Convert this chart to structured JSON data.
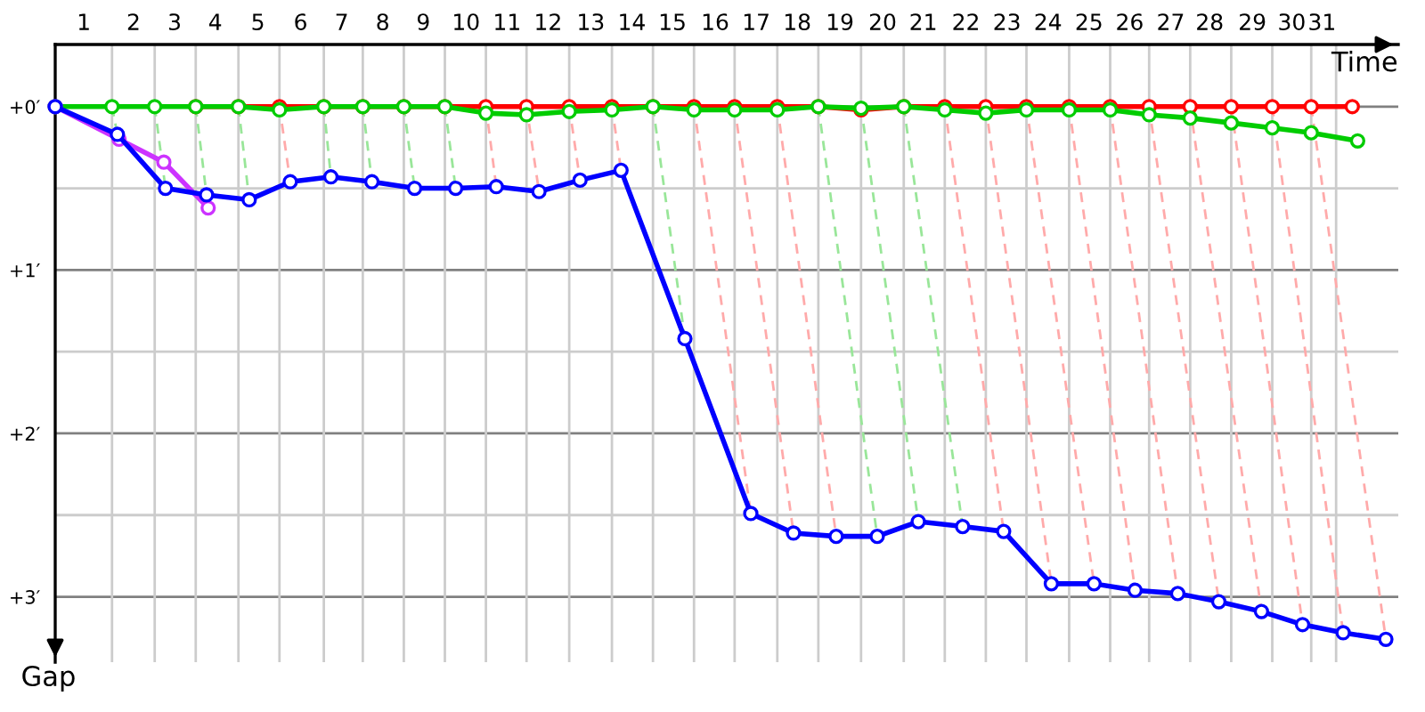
{
  "chart_data": {
    "type": "line",
    "xlabel": "Time",
    "ylabel": "Gap",
    "xlim": [
      0,
      32.4
    ],
    "ylim": [
      3.4,
      -0.38
    ],
    "xticks": [
      {
        "value": 0.69,
        "label": "1"
      },
      {
        "value": 1.89,
        "label": "2"
      },
      {
        "value": 2.88,
        "label": "3"
      },
      {
        "value": 3.86,
        "label": "4"
      },
      {
        "value": 4.89,
        "label": "5"
      },
      {
        "value": 5.92,
        "label": "6"
      },
      {
        "value": 6.91,
        "label": "7"
      },
      {
        "value": 7.9,
        "label": "8"
      },
      {
        "value": 8.88,
        "label": "9"
      },
      {
        "value": 9.91,
        "label": "10"
      },
      {
        "value": 10.9,
        "label": "11"
      },
      {
        "value": 11.89,
        "label": "12"
      },
      {
        "value": 12.92,
        "label": "13"
      },
      {
        "value": 13.91,
        "label": "14"
      },
      {
        "value": 14.89,
        "label": "15"
      },
      {
        "value": 15.92,
        "label": "16"
      },
      {
        "value": 16.91,
        "label": "17"
      },
      {
        "value": 17.9,
        "label": "18"
      },
      {
        "value": 18.93,
        "label": "19"
      },
      {
        "value": 19.96,
        "label": "20"
      },
      {
        "value": 20.94,
        "label": "21"
      },
      {
        "value": 21.97,
        "label": "22"
      },
      {
        "value": 22.96,
        "label": "23"
      },
      {
        "value": 23.95,
        "label": "24"
      },
      {
        "value": 24.94,
        "label": "25"
      },
      {
        "value": 25.92,
        "label": "26"
      },
      {
        "value": 26.91,
        "label": "27"
      },
      {
        "value": 27.85,
        "label": "28"
      },
      {
        "value": 28.88,
        "label": "29"
      },
      {
        "value": 29.83,
        "label": "30"
      },
      {
        "value": 30.56,
        "label": "31"
      }
    ],
    "yticks": [
      {
        "value": 0,
        "label": "+0′"
      },
      {
        "value": 0.5,
        "label": null
      },
      {
        "value": 1,
        "label": "+1′"
      },
      {
        "value": 1.5,
        "label": null
      },
      {
        "value": 2,
        "label": "+2′"
      },
      {
        "value": 2.5,
        "label": null
      },
      {
        "value": 3,
        "label": "+3′"
      }
    ],
    "grid": "y",
    "marker": "circle",
    "ref_lines": [
      {
        "axis": "x",
        "value": 1.37,
        "color": "#cccccc"
      },
      {
        "axis": "x",
        "value": 2.4,
        "color": "#cccccc"
      },
      {
        "axis": "x",
        "value": 3.39,
        "color": "#cccccc"
      },
      {
        "axis": "x",
        "value": 4.42,
        "color": "#cccccc"
      },
      {
        "axis": "x",
        "value": 5.41,
        "color": "#cccccc"
      },
      {
        "axis": "x",
        "value": 6.48,
        "color": "#cccccc"
      },
      {
        "axis": "x",
        "value": 7.42,
        "color": "#cccccc"
      },
      {
        "axis": "x",
        "value": 8.41,
        "color": "#cccccc"
      },
      {
        "axis": "x",
        "value": 9.4,
        "color": "#cccccc"
      },
      {
        "axis": "x",
        "value": 10.39,
        "color": "#cccccc"
      },
      {
        "axis": "x",
        "value": 11.37,
        "color": "#cccccc"
      },
      {
        "axis": "x",
        "value": 12.4,
        "color": "#cccccc"
      },
      {
        "axis": "x",
        "value": 13.43,
        "color": "#cccccc"
      },
      {
        "axis": "x",
        "value": 14.42,
        "color": "#cccccc"
      },
      {
        "axis": "x",
        "value": 15.41,
        "color": "#cccccc"
      },
      {
        "axis": "x",
        "value": 16.39,
        "color": "#cccccc"
      },
      {
        "axis": "x",
        "value": 17.42,
        "color": "#cccccc"
      },
      {
        "axis": "x",
        "value": 18.41,
        "color": "#cccccc"
      },
      {
        "axis": "x",
        "value": 19.44,
        "color": "#cccccc"
      },
      {
        "axis": "x",
        "value": 20.47,
        "color": "#cccccc"
      },
      {
        "axis": "x",
        "value": 21.46,
        "color": "#cccccc"
      },
      {
        "axis": "x",
        "value": 22.45,
        "color": "#cccccc"
      },
      {
        "axis": "x",
        "value": 23.43,
        "color": "#cccccc"
      },
      {
        "axis": "x",
        "value": 24.46,
        "color": "#cccccc"
      },
      {
        "axis": "x",
        "value": 25.45,
        "color": "#cccccc"
      },
      {
        "axis": "x",
        "value": 26.39,
        "color": "#cccccc"
      },
      {
        "axis": "x",
        "value": 27.38,
        "color": "#cccccc"
      },
      {
        "axis": "x",
        "value": 28.37,
        "color": "#cccccc"
      },
      {
        "axis": "x",
        "value": 29.36,
        "color": "#cccccc"
      },
      {
        "axis": "x",
        "value": 30.3,
        "color": "#cccccc"
      },
      {
        "axis": "x",
        "value": 30.9,
        "color": "#cccccc"
      }
    ],
    "series": [
      {
        "color": "#99e699",
        "line_style": "dashed",
        "marker": "none",
        "x": [
          1.37,
          1.5,
          null,
          2.4,
          2.66,
          null,
          3.39,
          3.65,
          null,
          4.42,
          4.68,
          null,
          6.48,
          6.65,
          null,
          7.42,
          7.64,
          null,
          8.41,
          8.67,
          null,
          9.4,
          9.66,
          null,
          14.42,
          15.19,
          null,
          18.41,
          19.83,
          null,
          19.44,
          20.82,
          null,
          20.47,
          21.89
        ],
        "values": [
          0,
          0.17,
          null,
          0,
          0.5,
          null,
          0,
          0.54,
          null,
          0,
          0.57,
          null,
          0,
          0.43,
          null,
          0,
          0.46,
          null,
          0,
          0.5,
          null,
          0,
          0.5,
          null,
          0,
          1.42,
          null,
          0,
          2.63,
          null,
          0,
          2.54,
          null,
          0,
          2.57
        ]
      },
      {
        "color": "#ffaaaa",
        "line_style": "dashed",
        "marker": "none",
        "x": [
          5.41,
          5.67,
          null,
          10.39,
          10.64,
          null,
          11.37,
          11.67,
          null,
          12.4,
          12.66,
          null,
          13.43,
          13.65,
          null,
          15.41,
          16.78,
          null,
          16.39,
          17.81,
          null,
          17.42,
          18.84,
          null,
          21.46,
          22.88,
          null,
          22.45,
          24.03,
          null,
          23.43,
          25.06,
          null,
          24.46,
          26.05,
          null,
          25.45,
          27.08,
          null,
          26.39,
          28.07,
          null,
          27.38,
          29.1,
          null,
          28.37,
          30.09,
          null,
          29.36,
          31.07,
          null,
          30.3,
          32.1
        ],
        "values": [
          0,
          0.46,
          null,
          0,
          0.49,
          null,
          0,
          0.52,
          null,
          0,
          0.45,
          null,
          0,
          0.39,
          null,
          0,
          2.49,
          null,
          0,
          2.61,
          null,
          0,
          2.63,
          null,
          0,
          2.6,
          null,
          0,
          2.92,
          null,
          0,
          2.92,
          null,
          0,
          2.96,
          null,
          0,
          2.98,
          null,
          0,
          3.03,
          null,
          0,
          3.09,
          null,
          0,
          3.17,
          null,
          0,
          3.22,
          null,
          0,
          3.26
        ]
      },
      {
        "color": "#ff0000",
        "x": [
          3.39,
          4.42,
          5.41,
          6.48,
          7.42,
          8.41,
          9.4,
          10.39,
          11.37,
          12.4,
          13.43,
          14.42,
          15.41,
          16.39,
          17.42,
          18.41,
          19.44,
          20.47,
          21.46,
          22.45,
          23.43,
          24.46,
          25.45,
          26.39,
          27.38,
          28.37,
          29.36,
          30.3,
          31.29
        ],
        "values": [
          0,
          0,
          0,
          0,
          0,
          0,
          0,
          0,
          0,
          0,
          0,
          0,
          0,
          0,
          0,
          0,
          0.02,
          0,
          0,
          0,
          0,
          0,
          0,
          0,
          0,
          0,
          0,
          0,
          0
        ]
      },
      {
        "color": "#00cc00",
        "x": [
          0,
          1.37,
          2.4,
          3.39,
          4.42,
          5.41,
          6.48,
          7.42,
          8.41,
          9.4,
          10.39,
          11.37,
          12.4,
          13.43,
          14.42,
          15.41,
          16.39,
          17.42,
          18.41,
          19.44,
          20.47,
          21.46,
          22.45,
          23.43,
          24.46,
          25.45,
          26.39,
          27.38,
          28.37,
          29.36,
          30.3,
          31.42
        ],
        "values": [
          0,
          0,
          0,
          0,
          0,
          0.02,
          0,
          0,
          0,
          0,
          0.04,
          0.05,
          0.03,
          0.02,
          0,
          0.02,
          0.02,
          0.02,
          0,
          0.01,
          0,
          0.02,
          0.04,
          0.02,
          0.02,
          0.02,
          0.05,
          0.07,
          0.1,
          0.13,
          0.16,
          0.21
        ]
      },
      {
        "color": "#cc33ff",
        "x": [
          0,
          1.54,
          2.62,
          3.69
        ],
        "values": [
          0,
          0.2,
          0.34,
          0.62
        ]
      },
      {
        "color": "#0000ff",
        "x": [
          0,
          1.5,
          2.66,
          3.65,
          4.68,
          5.67,
          6.65,
          7.64,
          8.67,
          9.66,
          10.64,
          11.67,
          12.66,
          13.65,
          15.19,
          16.78,
          17.81,
          18.84,
          19.83,
          20.82,
          21.89,
          22.88,
          24.03,
          25.06,
          26.05,
          27.08,
          28.07,
          29.1,
          30.09,
          31.07,
          32.1
        ],
        "values": [
          0,
          0.17,
          0.5,
          0.54,
          0.57,
          0.46,
          0.43,
          0.46,
          0.5,
          0.5,
          0.49,
          0.52,
          0.45,
          0.39,
          1.42,
          2.49,
          2.61,
          2.63,
          2.63,
          2.54,
          2.57,
          2.6,
          2.92,
          2.92,
          2.96,
          2.98,
          3.03,
          3.09,
          3.17,
          3.22,
          3.26
        ]
      }
    ]
  }
}
